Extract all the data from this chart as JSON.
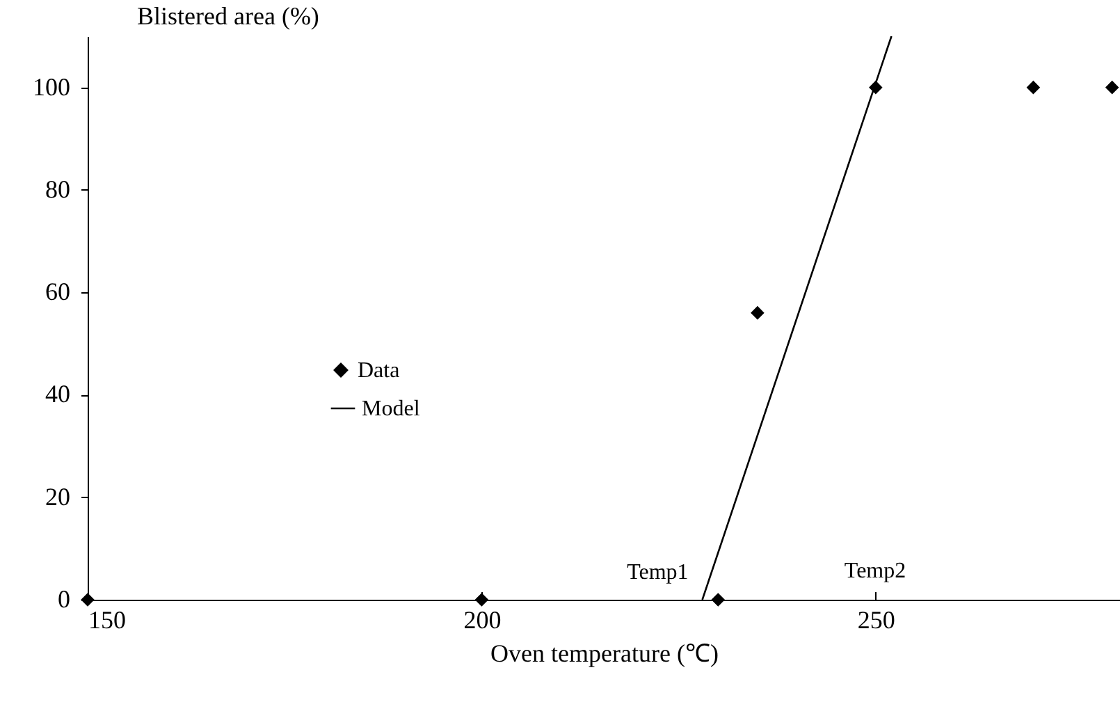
{
  "chart_data": {
    "type": "scatter",
    "xlabel": "Oven temperature (℃)",
    "ylabel": "Blistered area (%)",
    "xlim": [
      150,
      281
    ],
    "xticks": [
      150,
      200,
      250
    ],
    "ylim": [
      0,
      110
    ],
    "yticks": [
      0,
      20,
      40,
      60,
      80,
      100
    ],
    "grid": false,
    "legend": "left",
    "series": [
      {
        "name": "Data",
        "marker": "diamond",
        "color": "#000000",
        "x": [
          150,
          200,
          230,
          235,
          250,
          270,
          280
        ],
        "values": [
          0,
          0,
          0,
          56,
          100,
          100,
          100
        ]
      },
      {
        "name": "Model",
        "type": "line",
        "color": "#000000",
        "line_style": "solid",
        "x": [
          228,
          252
        ],
        "values": [
          0,
          110
        ]
      }
    ],
    "annotations": [
      {
        "text": "Temp1",
        "x": 228,
        "y": 0
      },
      "Temp2"
    ]
  }
}
